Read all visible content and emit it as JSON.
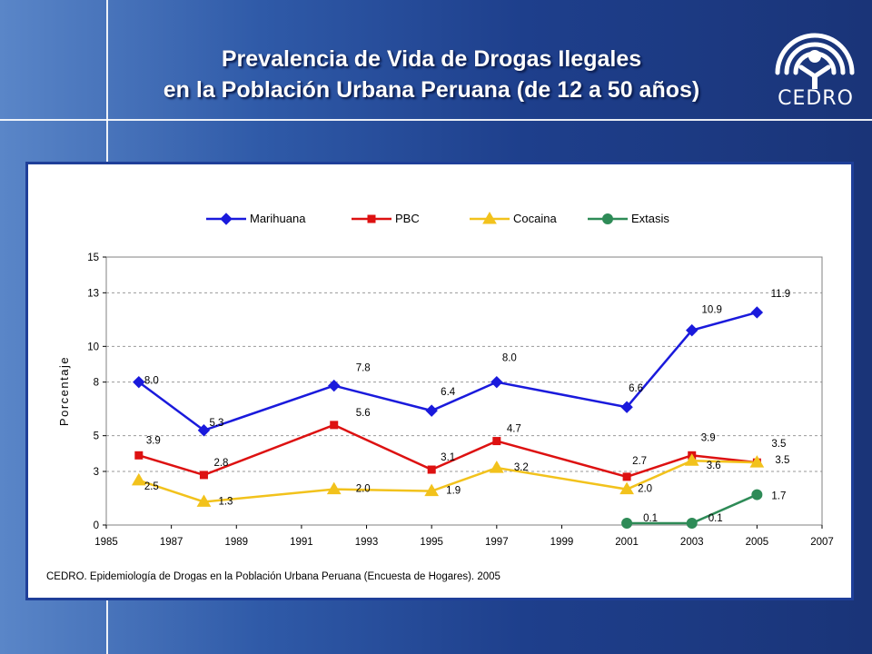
{
  "header": {
    "title_line1": "Prevalencia de Vida de Drogas Ilegales",
    "title_line2": "en la Población Urbana Peruana (de 12 a 50 años)",
    "logo_text": "CEDRO"
  },
  "source_note": "CEDRO. Epidemiología de Drogas en la Población Urbana Peruana  (Encuesta de Hogares).  2005",
  "chart_data": {
    "type": "line",
    "ylabel": "Porcentaje",
    "xlabel": "",
    "xlim": [
      1985,
      2007
    ],
    "ylim": [
      0,
      15
    ],
    "x_ticks": [
      1985,
      1987,
      1989,
      1991,
      1993,
      1995,
      1997,
      1999,
      2001,
      2003,
      2005,
      2007
    ],
    "y_ticks": [
      0,
      3,
      5,
      8,
      10,
      13,
      15
    ],
    "grid": "horizontal dashed",
    "legend_position": "top",
    "series": [
      {
        "name": "Marihuana",
        "color": "#1a1adc",
        "marker": "diamond",
        "x": [
          1986,
          1988,
          1992,
          1995,
          1997,
          2001,
          2003,
          2005
        ],
        "y": [
          8.0,
          5.3,
          7.8,
          6.4,
          8.0,
          6.6,
          10.9,
          11.9
        ],
        "labels": [
          "8.0",
          "5.3",
          "7.8",
          "6.4",
          "8.0",
          "6.6",
          "10.9",
          "11.9"
        ]
      },
      {
        "name": "PBC",
        "color": "#dd1111",
        "marker": "square",
        "x": [
          1986,
          1988,
          1992,
          1995,
          1997,
          2001,
          2003,
          2005
        ],
        "y": [
          3.9,
          2.8,
          5.6,
          3.1,
          4.7,
          2.7,
          3.9,
          3.5
        ],
        "labels": [
          "3.9",
          "2.8",
          "5.6",
          "3.1",
          "4.7",
          "2.7",
          "3.9",
          "3.5"
        ]
      },
      {
        "name": "Cocaina",
        "color": "#f2c21c",
        "marker": "triangle",
        "x": [
          1986,
          1988,
          1992,
          1995,
          1997,
          2001,
          2003,
          2005
        ],
        "y": [
          2.5,
          1.3,
          2.0,
          1.9,
          3.2,
          2.0,
          3.6,
          3.5
        ],
        "labels": [
          "2.5",
          "1.3",
          "2.0",
          "1.9",
          "3.2",
          "2.0",
          "3.6",
          "3.5"
        ]
      },
      {
        "name": "Extasis",
        "color": "#2e8b57",
        "marker": "circle",
        "x": [
          2001,
          2003,
          2005
        ],
        "y": [
          0.1,
          0.1,
          1.7
        ],
        "labels": [
          "0.1",
          "0.1",
          "1.7"
        ]
      }
    ]
  }
}
